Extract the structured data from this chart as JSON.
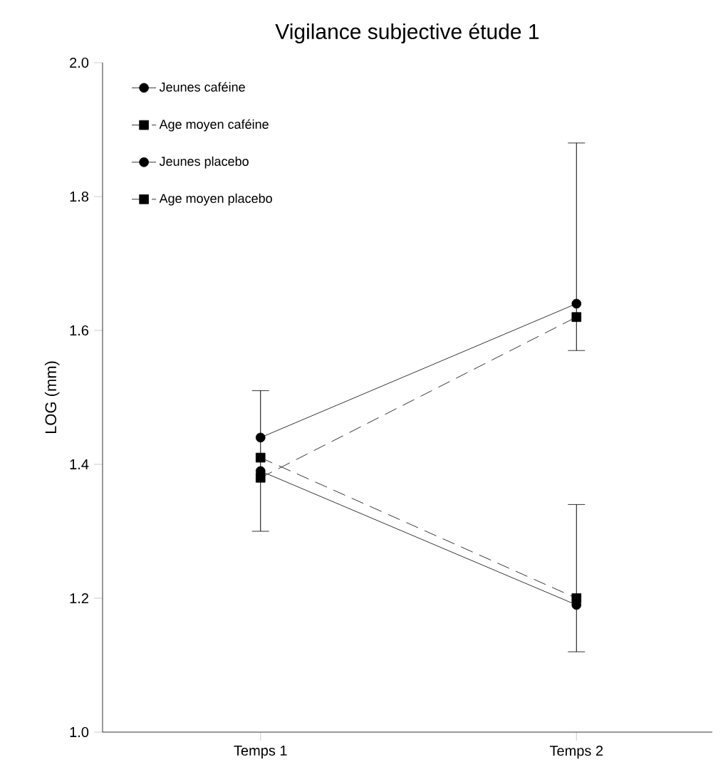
{
  "chart_data": {
    "type": "line",
    "title": "Vigilance subjective étude 1",
    "ylabel": "LOG (mm)",
    "categories": [
      "Temps 1",
      "Temps 2"
    ],
    "ylim": [
      1.0,
      2.0
    ],
    "yticks": [
      {
        "value": 1.0,
        "label": "1.0"
      },
      {
        "value": 1.2,
        "label": "1.2"
      },
      {
        "value": 1.4,
        "label": "1.4"
      },
      {
        "value": 1.6,
        "label": "1.6"
      },
      {
        "value": 1.8,
        "label": "1.8"
      },
      {
        "value": 2.0,
        "label": "2.0"
      }
    ],
    "legend": "top left",
    "grid": false,
    "series": [
      {
        "name": "Jeunes caféine",
        "color": "#000000",
        "values": [
          1.44,
          1.64
        ],
        "marker": "circle",
        "line_style": "solid",
        "errors": [
          [
            1.3,
            1.51
          ],
          [
            1.57,
            1.88
          ]
        ]
      },
      {
        "name": "Age  moyen caféine",
        "color": "#000000",
        "values": [
          1.38,
          1.62
        ],
        "marker": "square",
        "line_style": "dashed"
      },
      {
        "name": "Jeunes placebo",
        "color": "#000000",
        "values": [
          1.39,
          1.19
        ],
        "marker": "circle",
        "line_style": "solid",
        "errors": [
          null,
          [
            1.12,
            1.34
          ]
        ]
      },
      {
        "name": "Age moyen placebo",
        "color": "#000000",
        "values": [
          1.41,
          1.2
        ],
        "marker": "square",
        "line_style": "dashed"
      }
    ]
  }
}
